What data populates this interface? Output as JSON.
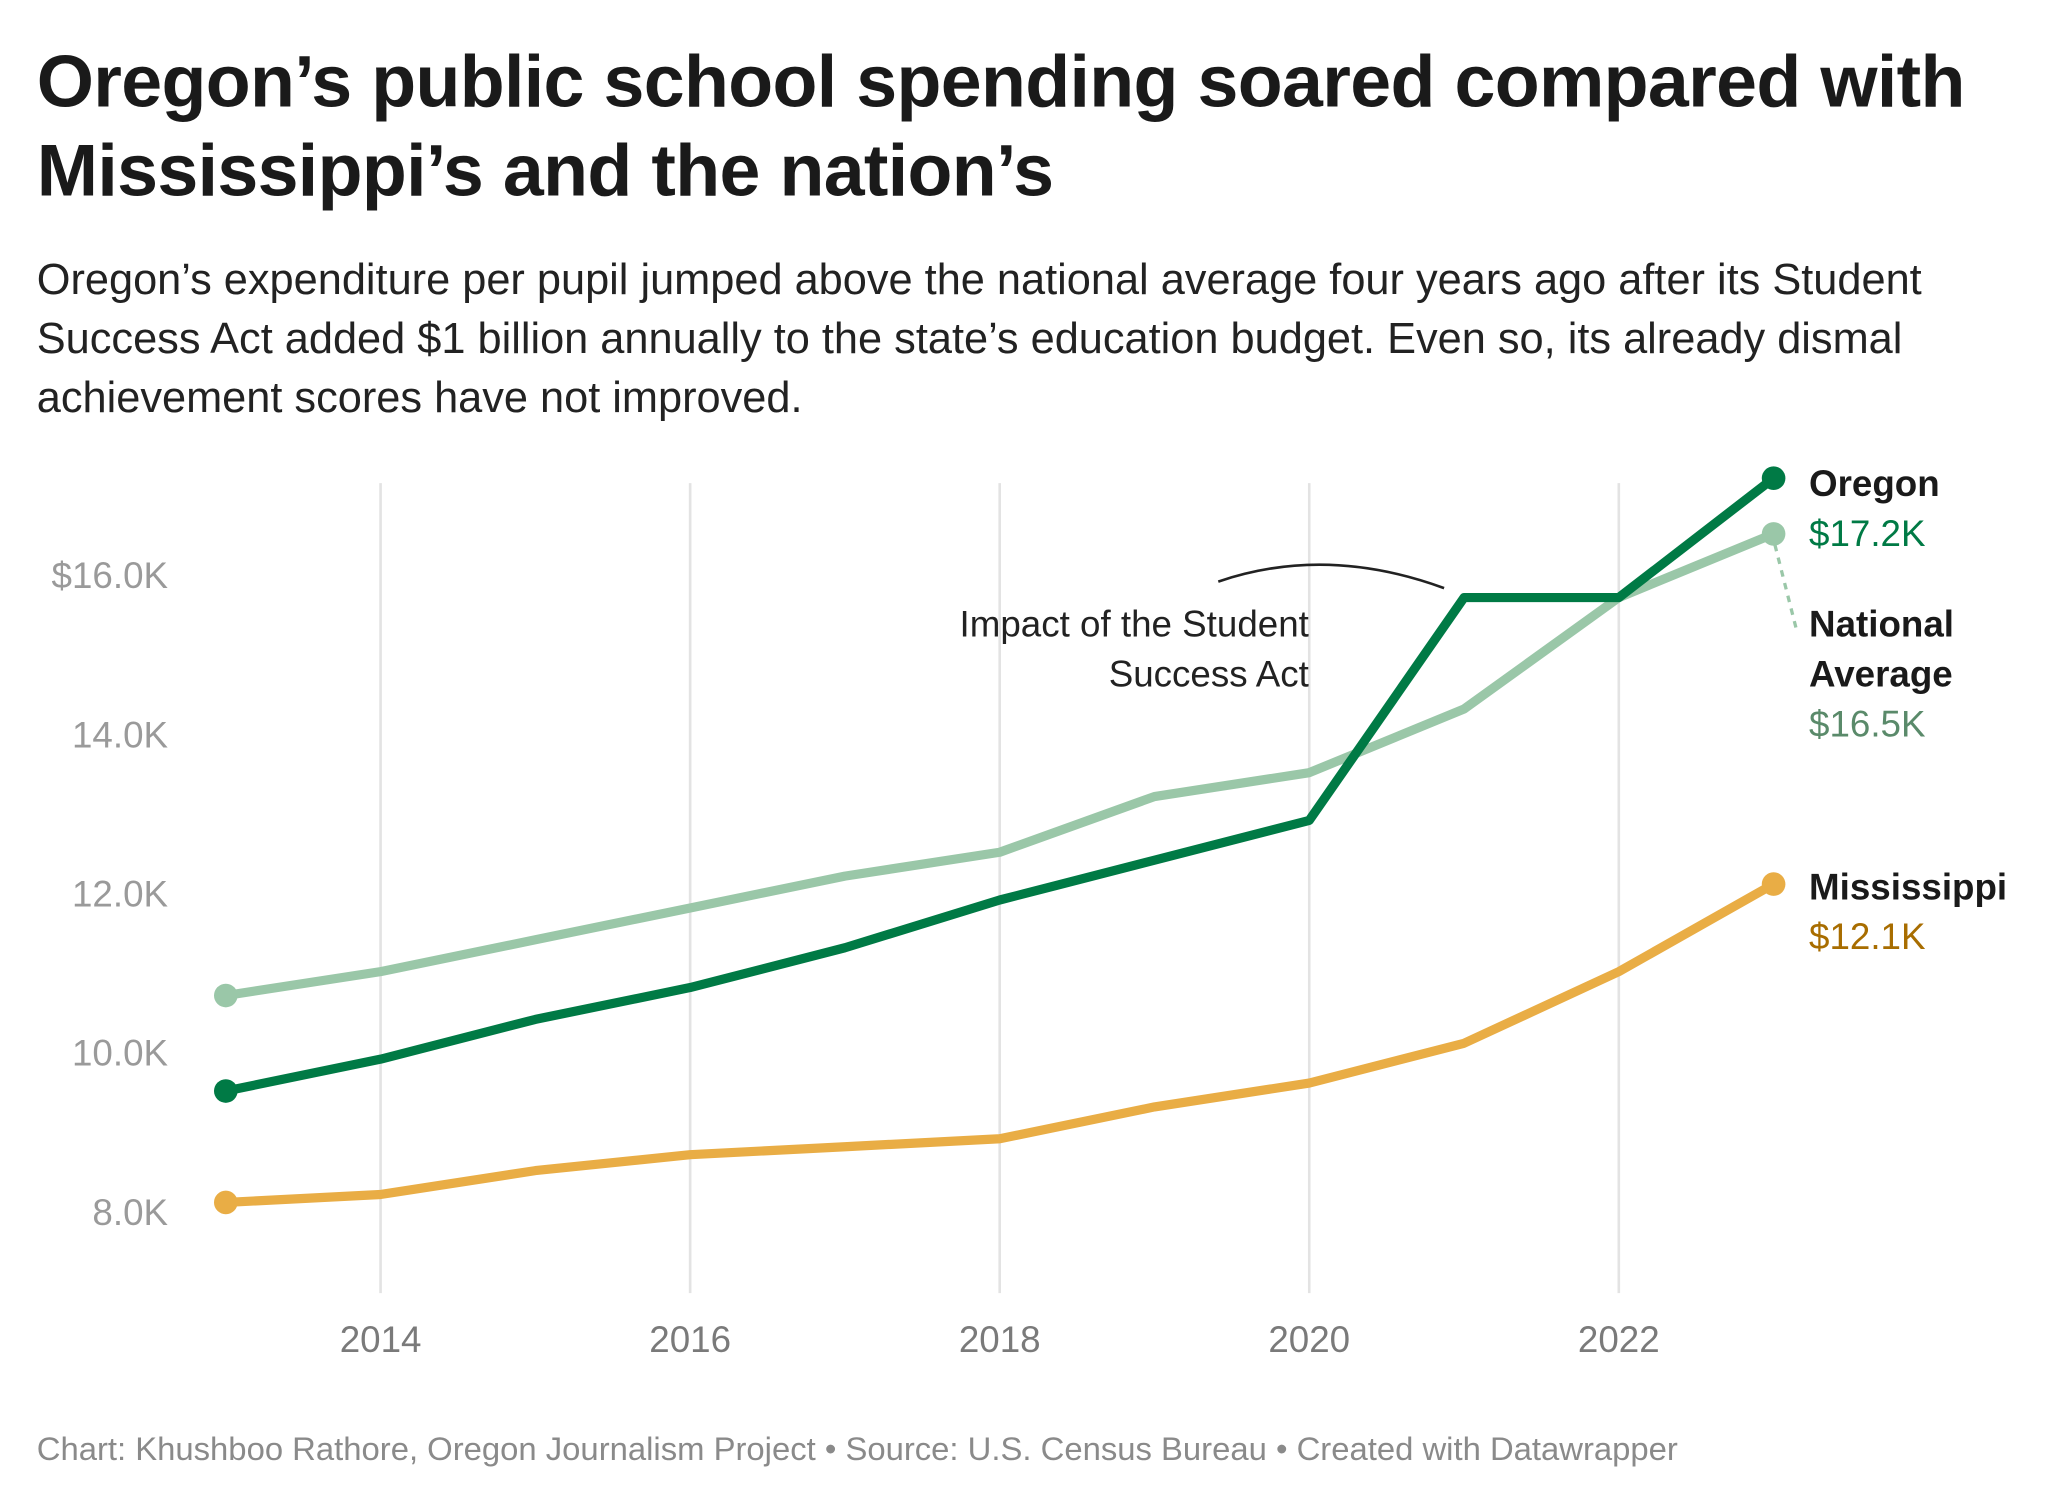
{
  "title": "Oregon’s public school spending soared compared with Mississippi’s and the nation’s",
  "subtitle": "Oregon’s expenditure per pupil jumped above the national average four years ago after its Student Success Act added $1 billion annually to the state’s education budget. Even so, its already dismal achievement scores have not improved.",
  "footer": "Chart: Khushboo Rathore, Oregon Journalism Project • Source: U.S. Census Bureau • Created with Datawrapper",
  "chart_data": {
    "type": "line",
    "x": [
      2013,
      2014,
      2015,
      2016,
      2017,
      2018,
      2019,
      2020,
      2021,
      2022,
      2023
    ],
    "xticks": [
      "2014",
      "2016",
      "2018",
      "2020",
      "2022"
    ],
    "yticks": [
      "$16.0K",
      "14.0K",
      "12.0K",
      "10.0K",
      "8.0K"
    ],
    "ylim": [
      7,
      17.5
    ],
    "grid": "vertical",
    "series": [
      {
        "name": "National Average",
        "end_label": "$16.5K",
        "color": "#9ac7a8",
        "label_color": "#5a8a6a",
        "values": [
          10.7,
          11.0,
          11.4,
          11.8,
          12.2,
          12.5,
          13.2,
          13.5,
          14.3,
          15.7,
          16.5
        ]
      },
      {
        "name": "Oregon",
        "end_label": "$17.2K",
        "color": "#007a45",
        "label_color": "#007a45",
        "values": [
          9.5,
          9.9,
          10.4,
          10.8,
          11.3,
          11.9,
          12.4,
          12.9,
          15.7,
          15.7,
          17.2
        ]
      },
      {
        "name": "Mississippi",
        "end_label": "$12.1K",
        "color": "#e9ad45",
        "label_color": "#a86d00",
        "values": [
          8.1,
          8.2,
          8.5,
          8.7,
          8.8,
          8.9,
          9.3,
          9.6,
          10.1,
          11.0,
          12.1
        ]
      }
    ],
    "annotation": {
      "lines": [
        "Impact of the Student",
        "Success Act"
      ]
    }
  }
}
